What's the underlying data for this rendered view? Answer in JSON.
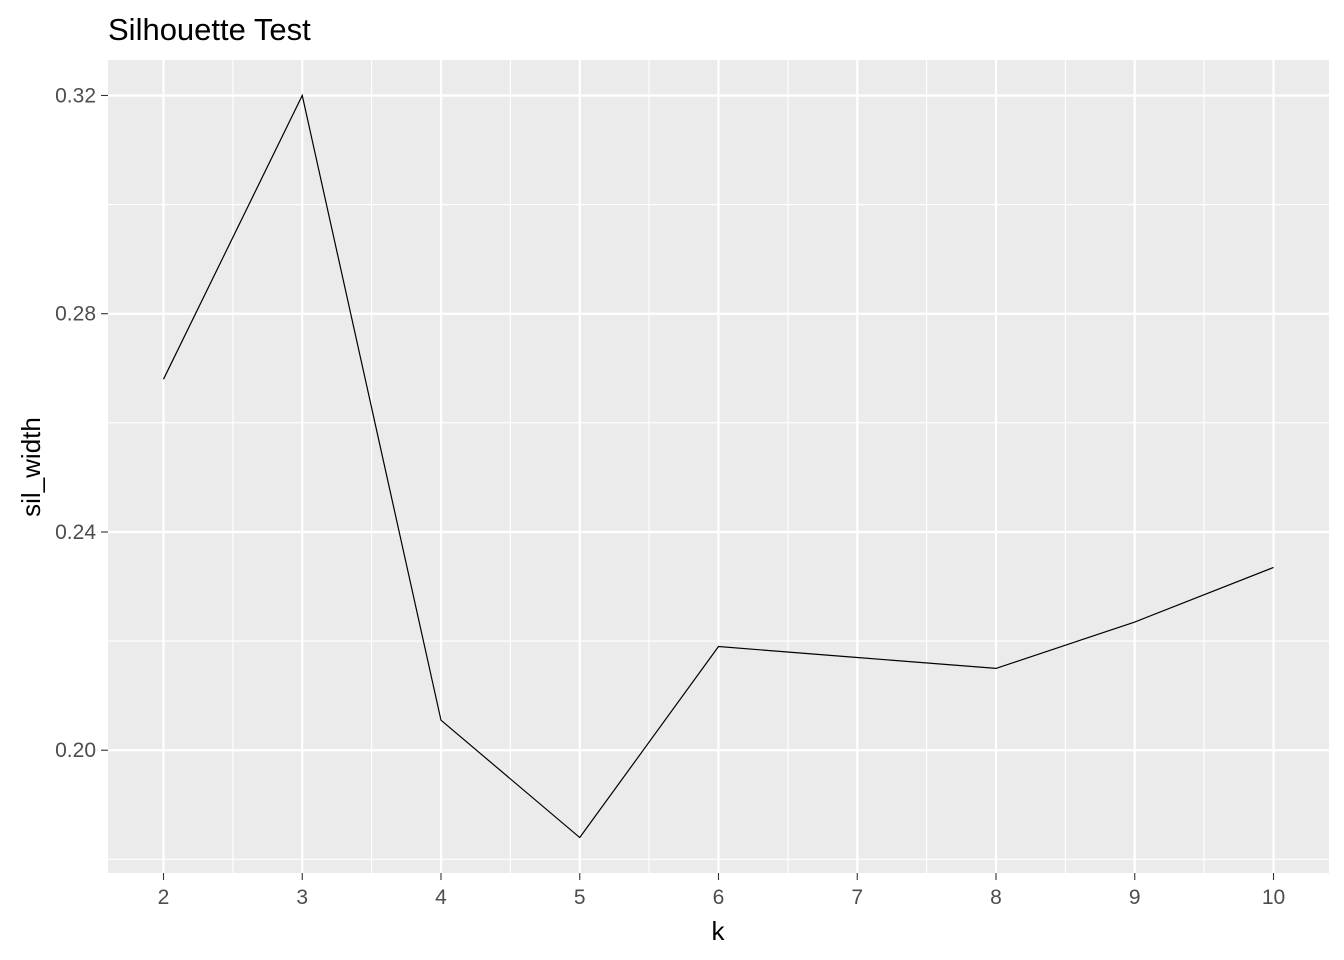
{
  "chart_data": {
    "type": "line",
    "title": "Silhouette Test",
    "xlabel": "k",
    "ylabel": "sil_width",
    "x": [
      2,
      3,
      4,
      5,
      6,
      7,
      8,
      9,
      10
    ],
    "series": [
      {
        "values": [
          0.268,
          0.32,
          0.2055,
          0.184,
          0.219,
          0.217,
          0.215,
          0.2235,
          0.2335
        ]
      }
    ],
    "xticks": [
      "2",
      "3",
      "4",
      "5",
      "6",
      "7",
      "8",
      "9",
      "10"
    ],
    "yticks": [
      "0.20",
      "0.24",
      "0.28",
      "0.32"
    ],
    "xlim": [
      1.6,
      10.4
    ],
    "ylim": [
      0.1775,
      0.3265
    ],
    "grid": true,
    "colors": {
      "panel_background": "#ebebeb",
      "grid_line": "#ffffff",
      "line": "#000000",
      "tick_label": "#4d4d4d",
      "tick_mark": "#333333"
    }
  }
}
